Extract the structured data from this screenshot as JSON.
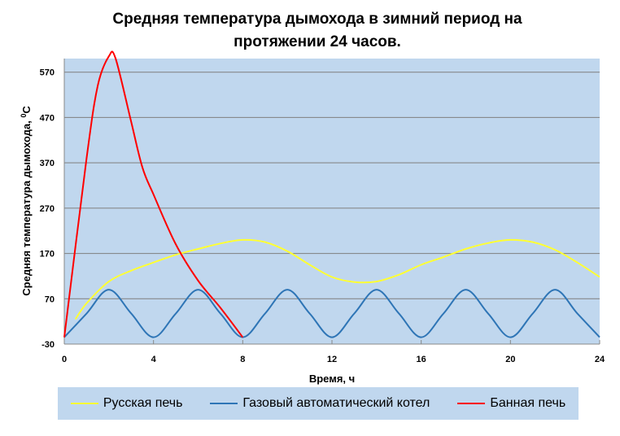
{
  "chart_data": {
    "type": "line",
    "title_line1": "Средняя температура дымохода в зимний период на",
    "title_line2": "протяжении 24 часов.",
    "xlabel": "Время, ч",
    "ylabel_main": "Средняя температура  дымохода, ",
    "ylabel_sup": "0",
    "ylabel_unit": "С",
    "xlim": [
      0,
      24
    ],
    "ylim": [
      -30,
      600
    ],
    "x_ticks": [
      0,
      4,
      8,
      12,
      16,
      20,
      24
    ],
    "y_ticks": [
      -30,
      70,
      170,
      270,
      370,
      470,
      570
    ],
    "grid": "horizontal",
    "legend_position": "bottom",
    "colors": {
      "plot_background": "#c0d7ee",
      "grid": "#7f7f7f"
    },
    "series": [
      {
        "name": "Русская печь",
        "color": "#ffff33",
        "x": [
          0.5,
          1,
          2,
          3,
          4,
          5,
          6,
          7,
          8,
          9,
          10,
          11,
          12,
          13,
          14,
          15,
          16,
          17,
          18,
          19,
          20,
          21,
          22,
          23,
          24
        ],
        "y": [
          25,
          60,
          108,
          132,
          150,
          167,
          180,
          192,
          200,
          195,
          175,
          145,
          118,
          107,
          108,
          123,
          145,
          162,
          180,
          193,
          200,
          195,
          178,
          150,
          118
        ]
      },
      {
        "name": "Газовый автоматический котел",
        "color": "#2e75b6",
        "x": [
          0,
          1,
          2,
          3,
          4,
          5,
          6,
          7,
          8,
          9,
          10,
          11,
          12,
          13,
          14,
          15,
          16,
          17,
          18,
          19,
          20,
          21,
          22,
          23,
          24
        ],
        "y": [
          -15,
          37.5,
          90,
          37.5,
          -15,
          37.5,
          90,
          37.5,
          -15,
          37.5,
          90,
          37.5,
          -15,
          37.5,
          90,
          37.5,
          -15,
          37.5,
          90,
          37.5,
          -15,
          37.5,
          90,
          37.5,
          -15
        ]
      },
      {
        "name": "Банная печь",
        "color": "#ff0000",
        "x": [
          0,
          1,
          1.5,
          2,
          2.3,
          3,
          3.5,
          4,
          5,
          6,
          7,
          8
        ],
        "y": [
          -15,
          380,
          540,
          605,
          600,
          460,
          360,
          300,
          190,
          110,
          50,
          -15
        ]
      }
    ]
  }
}
